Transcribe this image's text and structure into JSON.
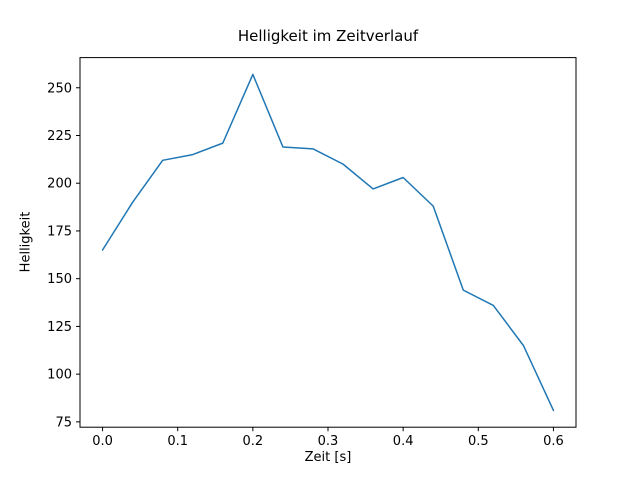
{
  "chart_data": {
    "type": "line",
    "title": "Helligkeit im Zeitverlauf",
    "xlabel": "Zeit [s]",
    "ylabel": "Helligkeit",
    "x": [
      0.0,
      0.04,
      0.08,
      0.12,
      0.16,
      0.2,
      0.24,
      0.28,
      0.32,
      0.36,
      0.4,
      0.44,
      0.48,
      0.52,
      0.56,
      0.6
    ],
    "y": [
      165,
      190,
      212,
      215,
      221,
      257,
      219,
      218,
      210,
      197,
      203,
      188,
      144,
      136,
      115,
      81
    ],
    "xticks": [
      0.0,
      0.1,
      0.2,
      0.3,
      0.4,
      0.5,
      0.6
    ],
    "yticks": [
      75,
      100,
      125,
      150,
      175,
      200,
      225,
      250
    ],
    "xlim": [
      -0.03,
      0.63
    ],
    "ylim": [
      72.2,
      265.8
    ],
    "line_color": "#1f77b4",
    "axis_color": "#000000",
    "background_color": "#ffffff",
    "grid": false,
    "legend": "none"
  }
}
